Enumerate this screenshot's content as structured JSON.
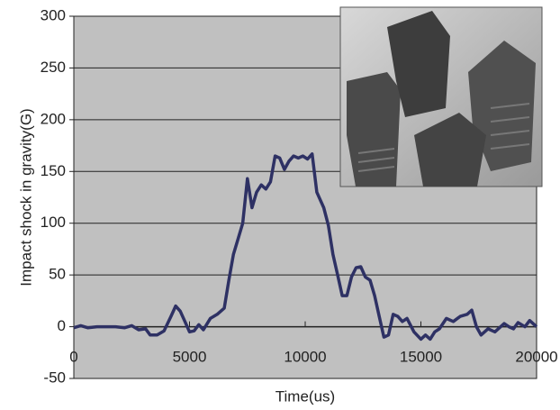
{
  "chart_data": {
    "type": "line",
    "x_label": "Time(us)",
    "y_label": "Impact shock in gravity(G)",
    "x": [
      0,
      300,
      600,
      1000,
      1800,
      2200,
      2500,
      2800,
      3100,
      3300,
      3600,
      3900,
      4200,
      4400,
      4600,
      4800,
      5000,
      5200,
      5400,
      5600,
      5900,
      6200,
      6500,
      6700,
      6900,
      7100,
      7300,
      7500,
      7700,
      7900,
      8100,
      8300,
      8500,
      8700,
      8900,
      9100,
      9300,
      9500,
      9700,
      9900,
      10100,
      10300,
      10500,
      10800,
      11000,
      11200,
      11400,
      11600,
      11800,
      12000,
      12200,
      12400,
      12600,
      12800,
      13000,
      13200,
      13400,
      13600,
      13800,
      14000,
      14200,
      14400,
      14700,
      15000,
      15200,
      15400,
      15600,
      15800,
      16100,
      16400,
      16700,
      17000,
      17200,
      17400,
      17600,
      17900,
      18200,
      18600,
      18800,
      19000,
      19200,
      19500,
      19700,
      20000
    ],
    "values": [
      -1,
      1,
      -1,
      0,
      0,
      -1,
      1,
      -3,
      -2,
      -8,
      -8,
      -4,
      10,
      20,
      15,
      5,
      -5,
      -4,
      2,
      -3,
      8,
      12,
      18,
      45,
      70,
      85,
      100,
      143,
      115,
      130,
      137,
      133,
      140,
      165,
      163,
      152,
      160,
      165,
      163,
      165,
      162,
      167,
      130,
      115,
      98,
      70,
      50,
      30,
      30,
      48,
      57,
      58,
      48,
      45,
      30,
      10,
      -10,
      -8,
      12,
      10,
      5,
      8,
      -5,
      -12,
      -8,
      -12,
      -5,
      -2,
      8,
      5,
      10,
      12,
      16,
      0,
      -8,
      -2,
      -5,
      3,
      0,
      -2,
      4,
      0,
      6,
      0
    ],
    "color": "#2e3164",
    "xlim": [
      0,
      20000
    ],
    "xticks": [
      0,
      5000,
      10000,
      15000,
      20000
    ],
    "ylim": [
      -50,
      300
    ],
    "yticks": [
      -50,
      0,
      50,
      100,
      150,
      200,
      250,
      300
    ],
    "grid": true
  }
}
